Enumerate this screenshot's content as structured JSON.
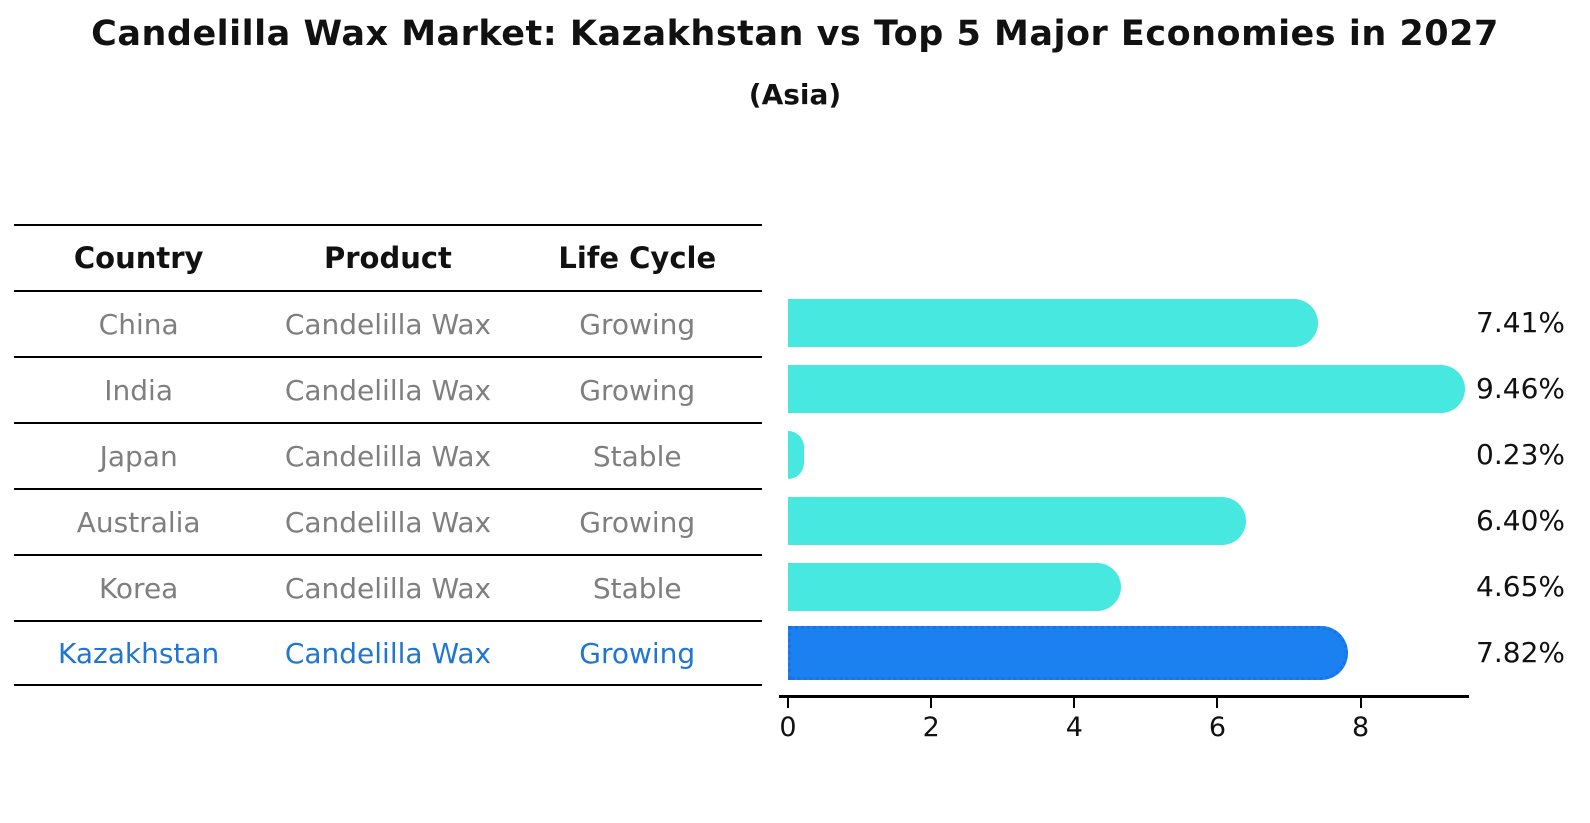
{
  "title": "Candelilla Wax Market: Kazakhstan vs Top 5 Major Economies in 2027",
  "subtitle": "(Asia)",
  "table": {
    "headers": [
      "Country",
      "Product",
      "Life Cycle"
    ],
    "rows": [
      {
        "country": "China",
        "product": "Candelilla Wax",
        "life_cycle": "Growing",
        "highlight": false
      },
      {
        "country": "India",
        "product": "Candelilla Wax",
        "life_cycle": "Growing",
        "highlight": false
      },
      {
        "country": "Japan",
        "product": "Candelilla Wax",
        "life_cycle": "Stable",
        "highlight": false
      },
      {
        "country": "Australia",
        "product": "Candelilla Wax",
        "life_cycle": "Growing",
        "highlight": false
      },
      {
        "country": "Korea",
        "product": "Candelilla Wax",
        "life_cycle": "Stable",
        "highlight": false
      },
      {
        "country": "Kazakhstan",
        "product": "Candelilla Wax",
        "life_cycle": "Growing",
        "highlight": true
      }
    ]
  },
  "chart_data": {
    "type": "bar",
    "orientation": "horizontal",
    "categories": [
      "China",
      "India",
      "Japan",
      "Australia",
      "Korea",
      "Kazakhstan"
    ],
    "values": [
      7.41,
      9.46,
      0.23,
      6.4,
      4.65,
      7.82
    ],
    "value_labels": [
      "7.41%",
      "9.46%",
      "0.23%",
      "6.40%",
      "4.65%",
      "7.82%"
    ],
    "highlight_index": 5,
    "x_ticks": [
      "0",
      "2",
      "4",
      "6",
      "8"
    ],
    "x_tick_values": [
      0,
      2,
      4,
      6,
      8
    ],
    "xlim": [
      0,
      9.5
    ],
    "grid": false,
    "legend": "none",
    "xlabel": "",
    "ylabel": ""
  },
  "colors": {
    "bar_default": "#47e8e0",
    "bar_highlight": "#1b80f0",
    "bar_highlight_border": "#1673e8",
    "table_text": "#7f7f7f",
    "table_highlight_text": "#2176d2",
    "heading_text": "#111111"
  }
}
